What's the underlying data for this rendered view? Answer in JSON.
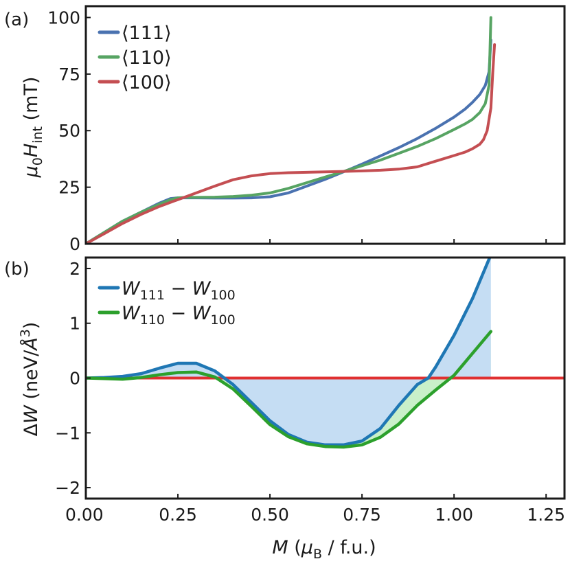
{
  "chart_data": [
    {
      "type": "line",
      "panel_label": "(a)",
      "xlim": [
        0.0,
        1.3
      ],
      "ylim": [
        0,
        105
      ],
      "x_ticks": [
        0.25,
        0.5,
        0.75,
        1.0,
        1.25
      ],
      "y_ticks": [
        0,
        25,
        50,
        75,
        100
      ],
      "y_tick_labels": [
        "0",
        "25",
        "50",
        "75",
        "100"
      ],
      "ylabel_parts": {
        "mu": "μ",
        "mu_sub": "0",
        "h": "H",
        "h_sub": "int",
        "unit": " (mT)"
      },
      "legend_location": "upper-left",
      "series": [
        {
          "name": "⟨111⟩",
          "color": "#4a72b0",
          "x": [
            0.0,
            0.05,
            0.1,
            0.15,
            0.2,
            0.23,
            0.25,
            0.27,
            0.3,
            0.35,
            0.4,
            0.45,
            0.5,
            0.55,
            0.6,
            0.65,
            0.7,
            0.75,
            0.8,
            0.85,
            0.9,
            0.95,
            1.0,
            1.03,
            1.05,
            1.07,
            1.085,
            1.095,
            1.1
          ],
          "y": [
            0,
            5,
            10,
            14,
            18,
            20,
            20.3,
            20.3,
            20.3,
            20.2,
            20.2,
            20.3,
            20.8,
            22.5,
            25.5,
            28.5,
            31.8,
            35.2,
            38.8,
            42.5,
            46.5,
            51,
            56,
            59.5,
            62.5,
            66,
            70,
            76,
            90
          ]
        },
        {
          "name": "⟨110⟩",
          "color": "#57a463",
          "x": [
            0.0,
            0.05,
            0.1,
            0.15,
            0.2,
            0.23,
            0.25,
            0.27,
            0.3,
            0.35,
            0.4,
            0.45,
            0.5,
            0.55,
            0.6,
            0.65,
            0.7,
            0.75,
            0.8,
            0.85,
            0.9,
            0.95,
            1.0,
            1.03,
            1.05,
            1.07,
            1.085,
            1.095,
            1.1
          ],
          "y": [
            0,
            5,
            10,
            14,
            17.5,
            19.5,
            20.3,
            20.5,
            20.5,
            20.6,
            20.9,
            21.5,
            22.5,
            24.5,
            27,
            29.5,
            32,
            34.5,
            37,
            40,
            43,
            46.5,
            50.5,
            53,
            55,
            58,
            62,
            70,
            100
          ]
        },
        {
          "name": "⟨100⟩",
          "color": "#c44e52",
          "x": [
            0.0,
            0.05,
            0.1,
            0.15,
            0.2,
            0.25,
            0.3,
            0.35,
            0.4,
            0.45,
            0.5,
            0.55,
            0.6,
            0.65,
            0.7,
            0.75,
            0.8,
            0.85,
            0.9,
            0.95,
            1.0,
            1.03,
            1.05,
            1.07,
            1.08,
            1.09,
            1.1,
            1.105,
            1.11
          ],
          "y": [
            0,
            4.5,
            9,
            13,
            16.5,
            19.5,
            22.5,
            25.5,
            28.3,
            30,
            31,
            31.4,
            31.6,
            31.8,
            32,
            32.2,
            32.5,
            33,
            34,
            36.5,
            39,
            40.5,
            42,
            44,
            46,
            50,
            60,
            75,
            88
          ]
        }
      ]
    },
    {
      "type": "line",
      "panel_label": "(b)",
      "xlim": [
        0.0,
        1.3
      ],
      "ylim": [
        -2.2,
        2.2
      ],
      "x_ticks": [
        0.0,
        0.25,
        0.5,
        0.75,
        1.0,
        1.25
      ],
      "x_tick_labels": [
        "0.00",
        "0.25",
        "0.50",
        "0.75",
        "1.00",
        "1.25"
      ],
      "y_ticks": [
        2,
        1,
        0,
        -1,
        -2
      ],
      "y_tick_labels": [
        "2",
        "1",
        "0",
        "−1",
        "−2"
      ],
      "xlabel_parts": {
        "m": "M",
        "open": " (",
        "mu": "μ",
        "mu_sub": "B",
        "unit": " / f.u.)"
      },
      "ylabel_parts": {
        "delta": "Δ",
        "w": "W",
        "unit": " (neV/",
        "angstrom": "Å",
        "exp": "3",
        "close": ")"
      },
      "legend_location": "upper-left",
      "fill_colors": {
        "w111": "#c5ddf3",
        "w110": "#c9f0c9"
      },
      "reference_line": {
        "y": 0,
        "color": "#e03030"
      },
      "series": [
        {
          "name": "W111 − W100",
          "legend": {
            "w": "W",
            "sub1": "111",
            "minus": " − ",
            "sub2": "100"
          },
          "color": "#1f77b4",
          "x": [
            0.0,
            0.05,
            0.1,
            0.15,
            0.2,
            0.25,
            0.3,
            0.35,
            0.4,
            0.45,
            0.5,
            0.55,
            0.6,
            0.65,
            0.7,
            0.75,
            0.8,
            0.85,
            0.9,
            0.93,
            0.95,
            1.0,
            1.05,
            1.1
          ],
          "y": [
            0,
            0.01,
            0.03,
            0.08,
            0.18,
            0.27,
            0.27,
            0.13,
            -0.12,
            -0.45,
            -0.78,
            -1.03,
            -1.17,
            -1.22,
            -1.22,
            -1.15,
            -0.92,
            -0.5,
            -0.12,
            0.0,
            0.2,
            0.78,
            1.45,
            2.25
          ]
        },
        {
          "name": "W110 − W100",
          "legend": {
            "w": "W",
            "sub1": "110",
            "minus": " − ",
            "sub2": "100"
          },
          "color": "#2ca02c",
          "x": [
            0.0,
            0.05,
            0.1,
            0.15,
            0.2,
            0.25,
            0.3,
            0.35,
            0.4,
            0.45,
            0.5,
            0.55,
            0.6,
            0.65,
            0.7,
            0.75,
            0.8,
            0.85,
            0.9,
            0.95,
            1.0,
            1.05,
            1.1
          ],
          "y": [
            0,
            -0.01,
            -0.02,
            0.01,
            0.06,
            0.1,
            0.11,
            0.02,
            -0.2,
            -0.52,
            -0.85,
            -1.07,
            -1.2,
            -1.25,
            -1.26,
            -1.22,
            -1.08,
            -0.84,
            -0.5,
            -0.22,
            0.05,
            0.45,
            0.85
          ]
        }
      ]
    }
  ]
}
